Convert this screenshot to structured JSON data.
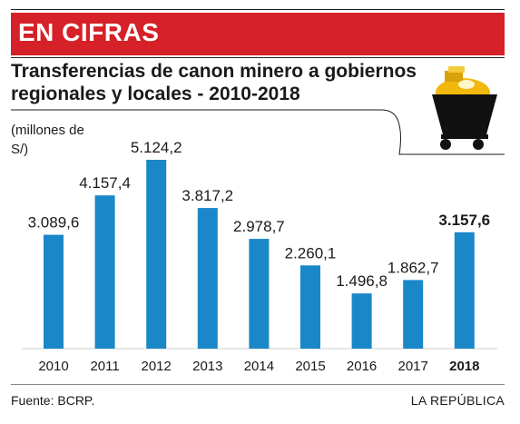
{
  "banner": {
    "label": "EN CIFRAS"
  },
  "title": "Transferencias de canon minero a gobiernos regionales y locales - 2010-2018",
  "unit_label": "(millones de S/)",
  "footer": {
    "source": "Fuente: BCRP.",
    "brand": "LA REPÚBLICA"
  },
  "colors": {
    "banner": "#d52127",
    "bar": "#1a87c9",
    "text": "#1a1a1a"
  },
  "icon": "mine-cart-gold-icon",
  "chart_data": {
    "type": "bar",
    "categories": [
      "2010",
      "2011",
      "2012",
      "2013",
      "2014",
      "2015",
      "2016",
      "2017",
      "2018"
    ],
    "values": [
      3089.6,
      4157.4,
      5124.2,
      3817.2,
      2978.7,
      2260.1,
      1496.8,
      1862.7,
      3157.6
    ],
    "value_labels": [
      "3.089,6",
      "4.157,4",
      "5.124,2",
      "3.817,2",
      "2.978,7",
      "2.260,1",
      "1.496,8",
      "1.862,7",
      "3.157,6"
    ],
    "highlight": [
      "2018"
    ],
    "ylabel": "(millones de S/)",
    "ylim": [
      0,
      5400
    ],
    "grid": false,
    "legend": "none"
  }
}
